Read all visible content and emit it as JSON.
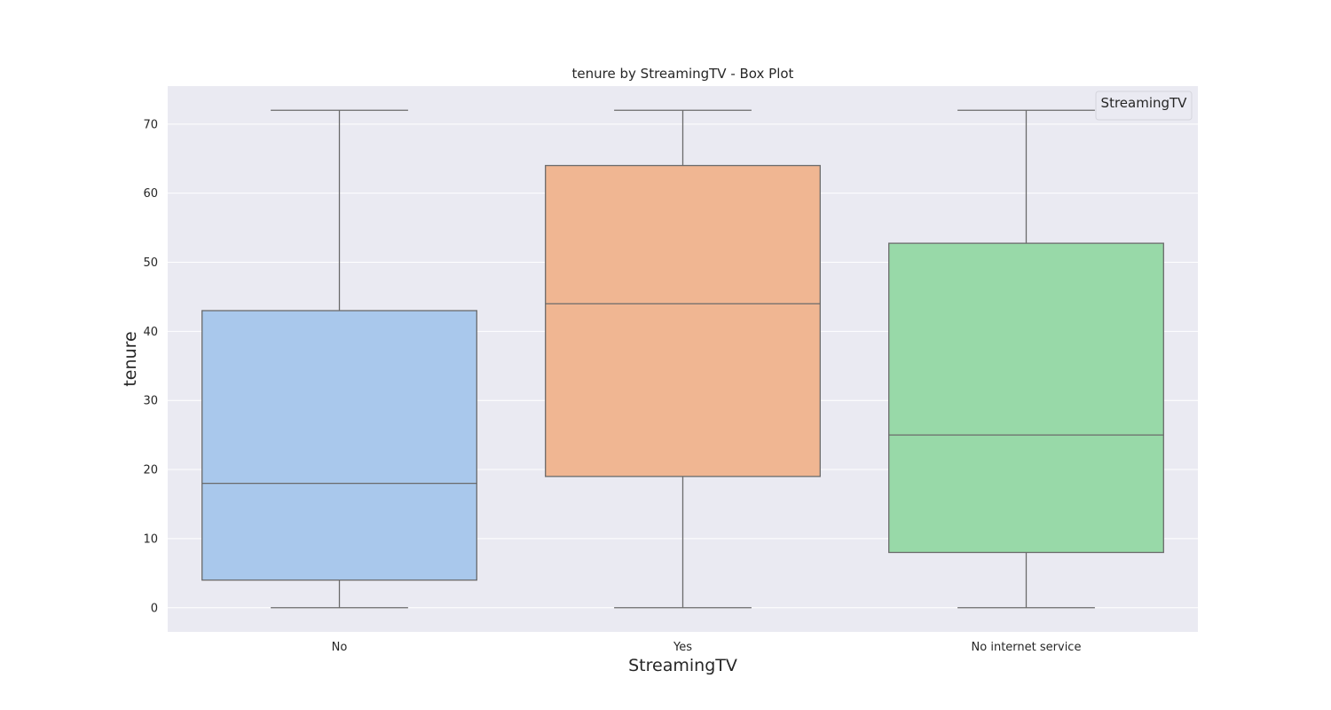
{
  "chart_data": {
    "type": "box",
    "title": "tenure by StreamingTV - Box Plot",
    "xlabel": "StreamingTV",
    "ylabel": "tenure",
    "ylim": [
      -3.5,
      75.5
    ],
    "yticks": [
      0,
      10,
      20,
      30,
      40,
      50,
      60,
      70
    ],
    "grid": true,
    "legend": {
      "title": "StreamingTV",
      "placement": "top-right",
      "entries": []
    },
    "categories": [
      "No",
      "Yes",
      "No internet service"
    ],
    "colors": [
      "#a9c8ec",
      "#f0b692",
      "#98d9a8"
    ],
    "boxes": [
      {
        "category": "No",
        "min": 0,
        "q1": 4,
        "median": 18,
        "q3": 43,
        "max": 72
      },
      {
        "category": "Yes",
        "min": 0,
        "q1": 19,
        "median": 44,
        "q3": 64,
        "max": 72
      },
      {
        "category": "No internet service",
        "min": 0,
        "q1": 8,
        "median": 25,
        "q3": 52.75,
        "max": 72
      }
    ],
    "style": {
      "plot_background": "#eaeaf2",
      "grid_color": "#ffffff",
      "line_color": "#6b6b6b",
      "text_color": "#262626"
    }
  }
}
